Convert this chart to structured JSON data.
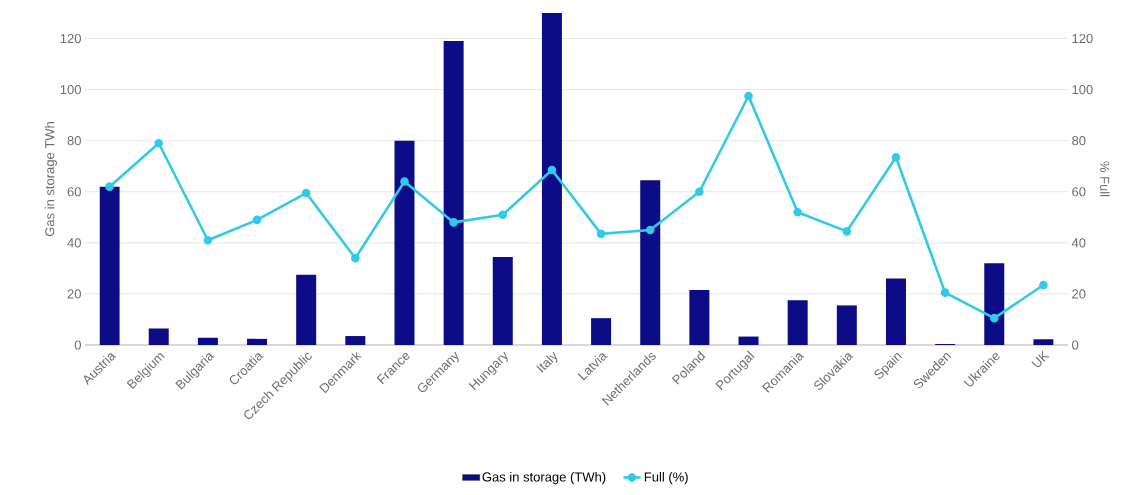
{
  "chart_data": {
    "type": "bar",
    "ylabel": "Gas in storage TWh",
    "y2label": "% Full",
    "categories": [
      "Austria",
      "Belgium",
      "Bulgaria",
      "Croatia",
      "Czech Republic",
      "Denmark",
      "France",
      "Germany",
      "Hungary",
      "Italy",
      "Latvia",
      "Netherlands",
      "Poland",
      "Portugal",
      "Romania",
      "Slovakia",
      "Spain",
      "Sweden",
      "Ukraine",
      "UK"
    ],
    "series": [
      {
        "name": "Gas in storage (TWh)",
        "color": "#0c0c86",
        "values": [
          62,
          6.5,
          2.8,
          2.4,
          27.5,
          3.5,
          80,
          119,
          34.5,
          130,
          10.5,
          64.5,
          21.5,
          3.3,
          17.5,
          15.5,
          26,
          0.4,
          32,
          2.2
        ]
      },
      {
        "name": "Full (%)",
        "type": "line",
        "axis": "y2",
        "color": "#33c9e8",
        "marker": "circle",
        "values": [
          62,
          79,
          41,
          49,
          59.5,
          34,
          64,
          48,
          51,
          68.5,
          43.5,
          45,
          60,
          97.5,
          52,
          44.5,
          73.5,
          20.5,
          10.5,
          23.5
        ]
      }
    ],
    "ylim": [
      0,
      130
    ],
    "yticks": [
      0,
      20,
      40,
      60,
      80,
      100,
      120
    ],
    "y2lim": [
      0,
      130
    ],
    "y2ticks": [
      0,
      20,
      40,
      60,
      80,
      100,
      120
    ],
    "grid": "y",
    "legend": "bottom"
  }
}
